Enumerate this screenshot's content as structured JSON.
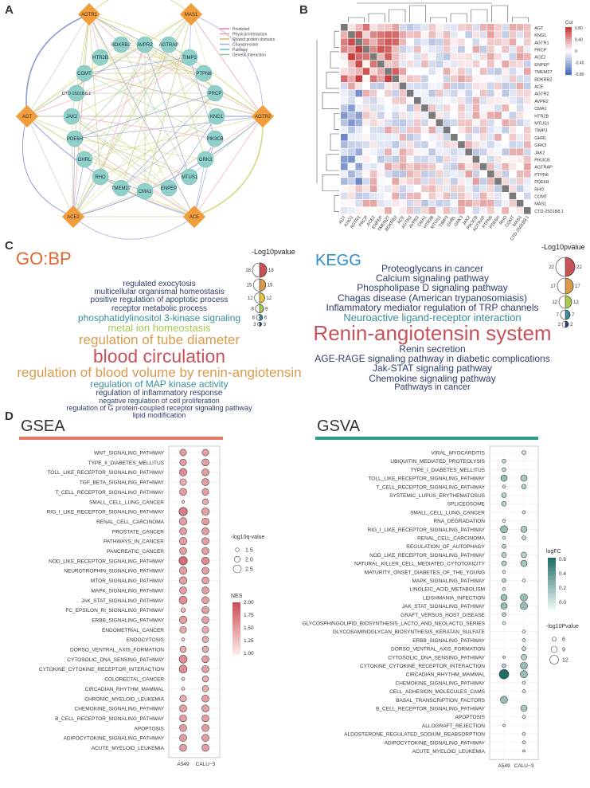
{
  "panels": {
    "a": "A",
    "b": "B",
    "c": "C",
    "d": "D"
  },
  "network": {
    "hubs": [
      "AGTR1",
      "MAS1",
      "AGT",
      "AGTR2",
      "ACE2",
      "ACE"
    ],
    "nodes": [
      "AVPR2",
      "BDKRB2",
      "AGTRAP",
      "HTR2B",
      "TIMP3",
      "COMT",
      "PTPN6",
      "CTD-2501B8.1",
      "PRCP",
      "JAK2",
      "KNG1",
      "PDE6H",
      "PIK3CB",
      "GHRL",
      "GRK3",
      "RHO",
      "MTUS1",
      "TMEM27",
      "CMA1",
      "ENPEP"
    ],
    "legend": [
      {
        "label": "Predicted",
        "color": "#ef7aa8"
      },
      {
        "label": "Physical Interaction",
        "color": "#e89d9d"
      },
      {
        "label": "Shared protein domains",
        "color": "#d9b36a"
      },
      {
        "label": "Co-expression",
        "color": "#9ab3d6"
      },
      {
        "label": "Pathway",
        "color": "#5fc3c0"
      },
      {
        "label": "Genetic Interaction",
        "color": "#8ec78e"
      }
    ]
  },
  "heatmap": {
    "genes": [
      "AGT",
      "KNG1",
      "AGTR1",
      "PRCP",
      "ACE2",
      "ENPEP",
      "TMEM27",
      "BDKRB2",
      "ACE",
      "AGTR2",
      "AVPR2",
      "CMA1",
      "HTR2B",
      "MTUS1",
      "TIMP3",
      "GHRL",
      "GRK3",
      "JAK2",
      "PIK3CB",
      "AGTRAP",
      "PTPN6",
      "PDE6H",
      "RHO",
      "COMT",
      "MAS1",
      "CTD-2501B8.1"
    ],
    "legend_title": "Cor",
    "legend_ticks": [
      "0.80",
      "0.40",
      "0",
      "-0.40",
      "-0.80"
    ]
  },
  "gobp": {
    "title": "GO:BP",
    "legend_title": "-Log10pvalue",
    "legend_values": [
      "18",
      "15",
      "12",
      "9",
      "6",
      "3"
    ],
    "terms": [
      {
        "text": "regulated exocytosis",
        "color": "#2c3e6b",
        "size": 10
      },
      {
        "text": "multicellular organismal homeostasis",
        "color": "#2c3e6b",
        "size": 10
      },
      {
        "text": "positive regulation of apoptotic process",
        "color": "#2c3e6b",
        "size": 10
      },
      {
        "text": "receptor metabolic process",
        "color": "#2c3e6b",
        "size": 10
      },
      {
        "text": "phosphatidylinositol 3-kinase signaling",
        "color": "#3a8e9a",
        "size": 12
      },
      {
        "text": "metal ion homeostasis",
        "color": "#a8c84e",
        "size": 13
      },
      {
        "text": "regulation of tube diameter",
        "color": "#d99a4a",
        "size": 17
      },
      {
        "text": "blood circulation",
        "color": "#c8525a",
        "size": 23
      },
      {
        "text": "regulation of blood volume by renin-angiotensin",
        "color": "#d99a4a",
        "size": 17
      },
      {
        "text": "regulation of MAP kinase activity",
        "color": "#3a8e9a",
        "size": 12
      },
      {
        "text": "regulation of inflammatory response",
        "color": "#2c3e6b",
        "size": 10
      },
      {
        "text": "negative regulation of cell proliferation",
        "color": "#2c3e6b",
        "size": 9
      },
      {
        "text": "regulation of G protein-coupled receptor signaling pathway",
        "color": "#2c3e6b",
        "size": 9
      },
      {
        "text": "lipid modification",
        "color": "#2c3e6b",
        "size": 9
      }
    ]
  },
  "kegg": {
    "title": "KEGG",
    "legend_title": "-Log10pvalue",
    "legend_values": [
      "22",
      "17",
      "12",
      "7",
      "2"
    ],
    "terms": [
      {
        "text": "Proteoglycans in cancer",
        "color": "#2c3e6b",
        "size": 12
      },
      {
        "text": "Calcium signaling pathway",
        "color": "#2c3e6b",
        "size": 12
      },
      {
        "text": "Phospholipase D signaling pathway",
        "color": "#2c3e6b",
        "size": 12
      },
      {
        "text": "Chagas disease (American trypanosomiasis)",
        "color": "#2c3e6b",
        "size": 12
      },
      {
        "text": "Inflammatory mediator regulation of TRP channels",
        "color": "#2c3e6b",
        "size": 12
      },
      {
        "text": "Neuroactive ligand-receptor interaction",
        "color": "#3a8e9a",
        "size": 13
      },
      {
        "text": "Renin-angiotensin system",
        "color": "#c8525a",
        "size": 26
      },
      {
        "text": "Renin secretion",
        "color": "#2c3e6b",
        "size": 12
      },
      {
        "text": "AGE-RAGE signaling pathway in diabetic complications",
        "color": "#2c3e6b",
        "size": 12
      },
      {
        "text": "Jak-STAT signaling pathway",
        "color": "#2c3e6b",
        "size": 12
      },
      {
        "text": "Chemokine signaling pathway",
        "color": "#2c3e6b",
        "size": 12
      },
      {
        "text": "Pathways in cancer",
        "color": "#2c3e6b",
        "size": 11
      }
    ]
  },
  "chart_data": [
    {
      "type": "scatter",
      "title": "GSEA",
      "xlabel": "",
      "ylabel": "",
      "x_categories": [
        "A549",
        "CALU−3"
      ],
      "size_legend_title": "-log10q-value",
      "size_legend_values": [
        1.5,
        2.0,
        2.5
      ],
      "color_legend_title": "NES",
      "color_legend_ticks": [
        2.0,
        1.75,
        1.5,
        1.25,
        1.0
      ],
      "color_range": [
        1.0,
        2.0
      ],
      "size_range": [
        1.2,
        2.8
      ],
      "pathways": [
        "WNT_SIGNALING_PATHWAY",
        "TYPE_II_DIABETES_MELLITUS",
        "TOLL_LIKE_RECEPTOR_SIGNALING_PATHWAY",
        "TGF_BETA_SIGNALING_PATHWAY",
        "T_CELL_RECEPTOR_SIGNALING_PATHWAY",
        "SMALL_CELL_LUNG_CANCER",
        "RIG_I_LIKE_RECEPTOR_SIGNALING_PATHWAY",
        "RENAL_CELL_CARCINOMA",
        "PROSTATE_CANCER",
        "PATHWAYS_IN_CANCER",
        "PANCREATIC_CANCER",
        "NOD_LIKE_RECEPTOR_SIGNALING_PATHWAY",
        "NEUROTROPHIN_SIGNALING_PATHWAY",
        "MTOR_SIGNALING_PATHWAY",
        "MAPK_SIGNALING_PATHWAY",
        "JAK_STAT_SIGNALING_PATHWAY",
        "FC_EPSILON_RI_SIGNALING_PATHWAY",
        "ERBB_SIGNALING_PATHWAY",
        "ENDOMETRIAL_CANCER",
        "ENDOCYTOSIS",
        "DORSO_VENTRAL_AXIS_FORMATION",
        "CYTOSOLIC_DNA_SENSING_PATHWAY",
        "CYTOKINE_CYTOKINE_RECEPTOR_INTERACTION",
        "COLORECTAL_CANCER",
        "CIRCADIAN_RHYTHM_MAMMAL",
        "CHRONIC_MYELOID_LEUKEMIA",
        "CHEMOKINE_SIGNALING_PATHWAY",
        "B_CELL_RECEPTOR_SIGNALING_PATHWAY",
        "APOPTOSIS",
        "ADIPOCYTOKINE_SIGNALING_PATHWAY",
        "ACUTE_MYELOID_LEUKEMIA"
      ],
      "points": {
        "A549": [
          {
            "nes": 1.5,
            "q": 2.2
          },
          {
            "nes": 1.5,
            "q": 2.2
          },
          {
            "nes": 1.6,
            "q": 2.4
          },
          {
            "nes": 1.4,
            "q": 2.2
          },
          {
            "nes": 1.5,
            "q": 2.3
          },
          {
            "nes": 1.2,
            "q": 1.3
          },
          {
            "nes": 1.7,
            "q": 2.6
          },
          {
            "nes": 1.5,
            "q": 2.4
          },
          {
            "nes": 1.5,
            "q": 2.3
          },
          {
            "nes": 1.5,
            "q": 2.4
          },
          {
            "nes": 1.5,
            "q": 2.3
          },
          {
            "nes": 1.8,
            "q": 2.6
          },
          {
            "nes": 1.5,
            "q": 2.4
          },
          {
            "nes": 1.5,
            "q": 2.4
          },
          {
            "nes": 1.5,
            "q": 2.3
          },
          {
            "nes": 1.6,
            "q": 2.5
          },
          {
            "nes": 1.3,
            "q": 1.7
          },
          {
            "nes": 1.5,
            "q": 2.4
          },
          {
            "nes": 1.4,
            "q": 2.2
          },
          {
            "nes": 1.2,
            "q": 1.4
          },
          {
            "nes": 1.4,
            "q": 2.1
          },
          {
            "nes": 1.6,
            "q": 2.5
          },
          {
            "nes": 1.6,
            "q": 2.5
          },
          {
            "nes": 1.2,
            "q": 1.4
          },
          {
            "nes": 1.2,
            "q": 1.4
          },
          {
            "nes": 1.4,
            "q": 2.2
          },
          {
            "nes": 1.5,
            "q": 2.3
          },
          {
            "nes": 1.5,
            "q": 2.3
          },
          {
            "nes": 1.5,
            "q": 2.3
          },
          {
            "nes": 1.5,
            "q": 2.3
          },
          {
            "nes": 1.5,
            "q": 2.3
          }
        ],
        "CALU−3": [
          {
            "nes": 1.5,
            "q": 2.2
          },
          {
            "nes": 1.5,
            "q": 2.3
          },
          {
            "nes": 1.5,
            "q": 2.3
          },
          {
            "nes": 1.5,
            "q": 2.3
          },
          {
            "nes": 1.5,
            "q": 2.2
          },
          {
            "nes": 1.4,
            "q": 2.0
          },
          {
            "nes": 1.5,
            "q": 2.4
          },
          {
            "nes": 1.5,
            "q": 2.3
          },
          {
            "nes": 1.5,
            "q": 2.3
          },
          {
            "nes": 1.5,
            "q": 2.3
          },
          {
            "nes": 1.5,
            "q": 2.3
          },
          {
            "nes": 1.6,
            "q": 2.4
          },
          {
            "nes": 1.5,
            "q": 2.3
          },
          {
            "nes": 1.5,
            "q": 2.3
          },
          {
            "nes": 1.5,
            "q": 2.3
          },
          {
            "nes": 1.5,
            "q": 2.3
          },
          {
            "nes": 1.5,
            "q": 2.3
          },
          {
            "nes": 1.5,
            "q": 2.3
          },
          {
            "nes": 1.4,
            "q": 2.2
          },
          {
            "nes": 1.4,
            "q": 2.1
          },
          {
            "nes": 1.4,
            "q": 2.1
          },
          {
            "nes": 1.5,
            "q": 2.3
          },
          {
            "nes": 1.5,
            "q": 2.3
          },
          {
            "nes": 1.4,
            "q": 2.1
          },
          {
            "nes": 1.4,
            "q": 2.1
          },
          {
            "nes": 1.5,
            "q": 2.3
          },
          {
            "nes": 1.5,
            "q": 2.3
          },
          {
            "nes": 1.5,
            "q": 2.3
          },
          {
            "nes": 1.5,
            "q": 2.3
          },
          {
            "nes": 1.5,
            "q": 2.3
          },
          {
            "nes": 1.5,
            "q": 2.3
          }
        ]
      }
    },
    {
      "type": "scatter",
      "title": "GSVA",
      "xlabel": "",
      "ylabel": "",
      "x_categories": [
        "A549",
        "CALU−3"
      ],
      "color_legend_title": "logFC",
      "color_legend_ticks": [
        0.6,
        0.4,
        0.2,
        0.0
      ],
      "color_range": [
        0.0,
        0.7
      ],
      "size_legend_title": "-log10Pvalue",
      "size_legend_values": [
        6,
        9,
        12
      ],
      "size_range": [
        4,
        14
      ],
      "pathways": [
        "VIRAL_MYOCARDITIS",
        "UBIQUITIN_MEDIATED_PROTEOLYSIS",
        "TYPE_I_DIABETES_MELLITUS",
        "TOLL_LIKE_RECEPTOR_SIGNALING_PATHWAY",
        "T_CELL_RECEPTOR_SIGNALING_PATHWAY",
        "SYSTEMIC_LUPUS_ERYTHEMATOSUS",
        "SPLICEOSOME",
        "SMALL_CELL_LUNG_CANCER",
        "RNA_DEGRADATION",
        "RIG_I_LIKE_RECEPTOR_SIGNALING_PATHWAY",
        "RENAL_CELL_CARCINOMA",
        "REGULATION_OF_AUTOPHAGY",
        "NOD_LIKE_RECEPTOR_SIGNALING_PATHWAY",
        "NATURAL_KILLER_CELL_MEDIATED_CYTOTOXICITY",
        "MATURITY_ONSET_DIABETES_OF_THE_YOUNG",
        "MAPK_SIGNALING_PATHWAY",
        "LINOLEIC_ACID_METABOLISM",
        "LEISHMANIA_INFECTION",
        "JAK_STAT_SIGNALING_PATHWAY",
        "GRAFT_VERSUS_HOST_DISEASE",
        "GLYCOSPHINGOLIPID_BIOSYNTHESIS_LACTO_AND_NEOLACTO_SERIES",
        "GLYCOSAMINOGLYCAN_BIOSYNTHESIS_KERATAN_SULFATE",
        "ERBB_SIGNALING_PATHWAY",
        "DORSO_VENTRAL_AXIS_FORMATION",
        "CYTOSOLIC_DNA_SENSING_PATHWAY",
        "CYTOKINE_CYTOKINE_RECEPTOR_INTERACTION",
        "CIRCADIAN_RHYTHM_MAMMAL",
        "CHEMOKINE_SIGNALING_PATHWAY",
        "CELL_ADHESION_MOLECULES_CAMS",
        "BASAL_TRANSCRIPTION_FACTORS",
        "B_CELL_RECEPTOR_SIGNALING_PATHWAY",
        "APOPTOSIS",
        "ALLOGRAFT_REJECTION",
        "ALDOSTERONE_REGULATED_SODIUM_REABSORPTION",
        "ADIPOCYTOKINE_SIGNALING_PATHWAY",
        "ACUTE_MYELOID_LEUKEMIA"
      ],
      "points": {
        "A549": [
          null,
          {
            "lfc": 0.15,
            "p": 6
          },
          {
            "lfc": 0.15,
            "p": 6
          },
          {
            "lfc": 0.3,
            "p": 9
          },
          {
            "lfc": 0.1,
            "p": 5
          },
          {
            "lfc": 0.2,
            "p": 7
          },
          {
            "lfc": 0.2,
            "p": 7
          },
          null,
          {
            "lfc": 0.1,
            "p": 5
          },
          {
            "lfc": 0.3,
            "p": 10
          },
          {
            "lfc": 0.1,
            "p": 5
          },
          {
            "lfc": 0.2,
            "p": 6
          },
          {
            "lfc": 0.2,
            "p": 7
          },
          {
            "lfc": 0.2,
            "p": 7
          },
          {
            "lfc": 0.1,
            "p": 5
          },
          {
            "lfc": 0.2,
            "p": 6
          },
          {
            "lfc": 0.1,
            "p": 5
          },
          {
            "lfc": 0.3,
            "p": 9
          },
          {
            "lfc": 0.3,
            "p": 9
          },
          {
            "lfc": 0.2,
            "p": 6
          },
          {
            "lfc": 0.1,
            "p": 5
          },
          null,
          null,
          null,
          {
            "lfc": 0.1,
            "p": 4
          },
          {
            "lfc": 0.2,
            "p": 6
          },
          {
            "lfc": 0.7,
            "p": 13
          },
          null,
          null,
          {
            "lfc": 0.3,
            "p": 10
          },
          null,
          null,
          {
            "lfc": 0.1,
            "p": 4
          },
          null,
          null,
          null
        ],
        "CALU−3": [
          {
            "lfc": 0.1,
            "p": 6
          },
          null,
          null,
          {
            "lfc": 0.25,
            "p": 9
          },
          {
            "lfc": 0.2,
            "p": 7
          },
          null,
          null,
          {
            "lfc": 0.1,
            "p": 5
          },
          null,
          {
            "lfc": 0.25,
            "p": 9
          },
          {
            "lfc": 0.15,
            "p": 6
          },
          null,
          {
            "lfc": 0.2,
            "p": 8
          },
          {
            "lfc": 0.25,
            "p": 9
          },
          null,
          {
            "lfc": 0.1,
            "p": 5
          },
          null,
          {
            "lfc": 0.3,
            "p": 10
          },
          {
            "lfc": 0.3,
            "p": 10
          },
          null,
          null,
          {
            "lfc": 0.1,
            "p": 5
          },
          {
            "lfc": 0.1,
            "p": 5
          },
          {
            "lfc": 0.15,
            "p": 6
          },
          {
            "lfc": 0.2,
            "p": 8
          },
          {
            "lfc": 0.3,
            "p": 10
          },
          {
            "lfc": 0.3,
            "p": 10
          },
          {
            "lfc": 0.1,
            "p": 5
          },
          {
            "lfc": 0.1,
            "p": 5
          },
          null,
          {
            "lfc": 0.25,
            "p": 9
          },
          {
            "lfc": 0.1,
            "p": 5
          },
          null,
          {
            "lfc": 0.1,
            "p": 5
          },
          {
            "lfc": 0.1,
            "p": 5
          },
          {
            "lfc": 0.1,
            "p": 4
          }
        ]
      }
    }
  ]
}
